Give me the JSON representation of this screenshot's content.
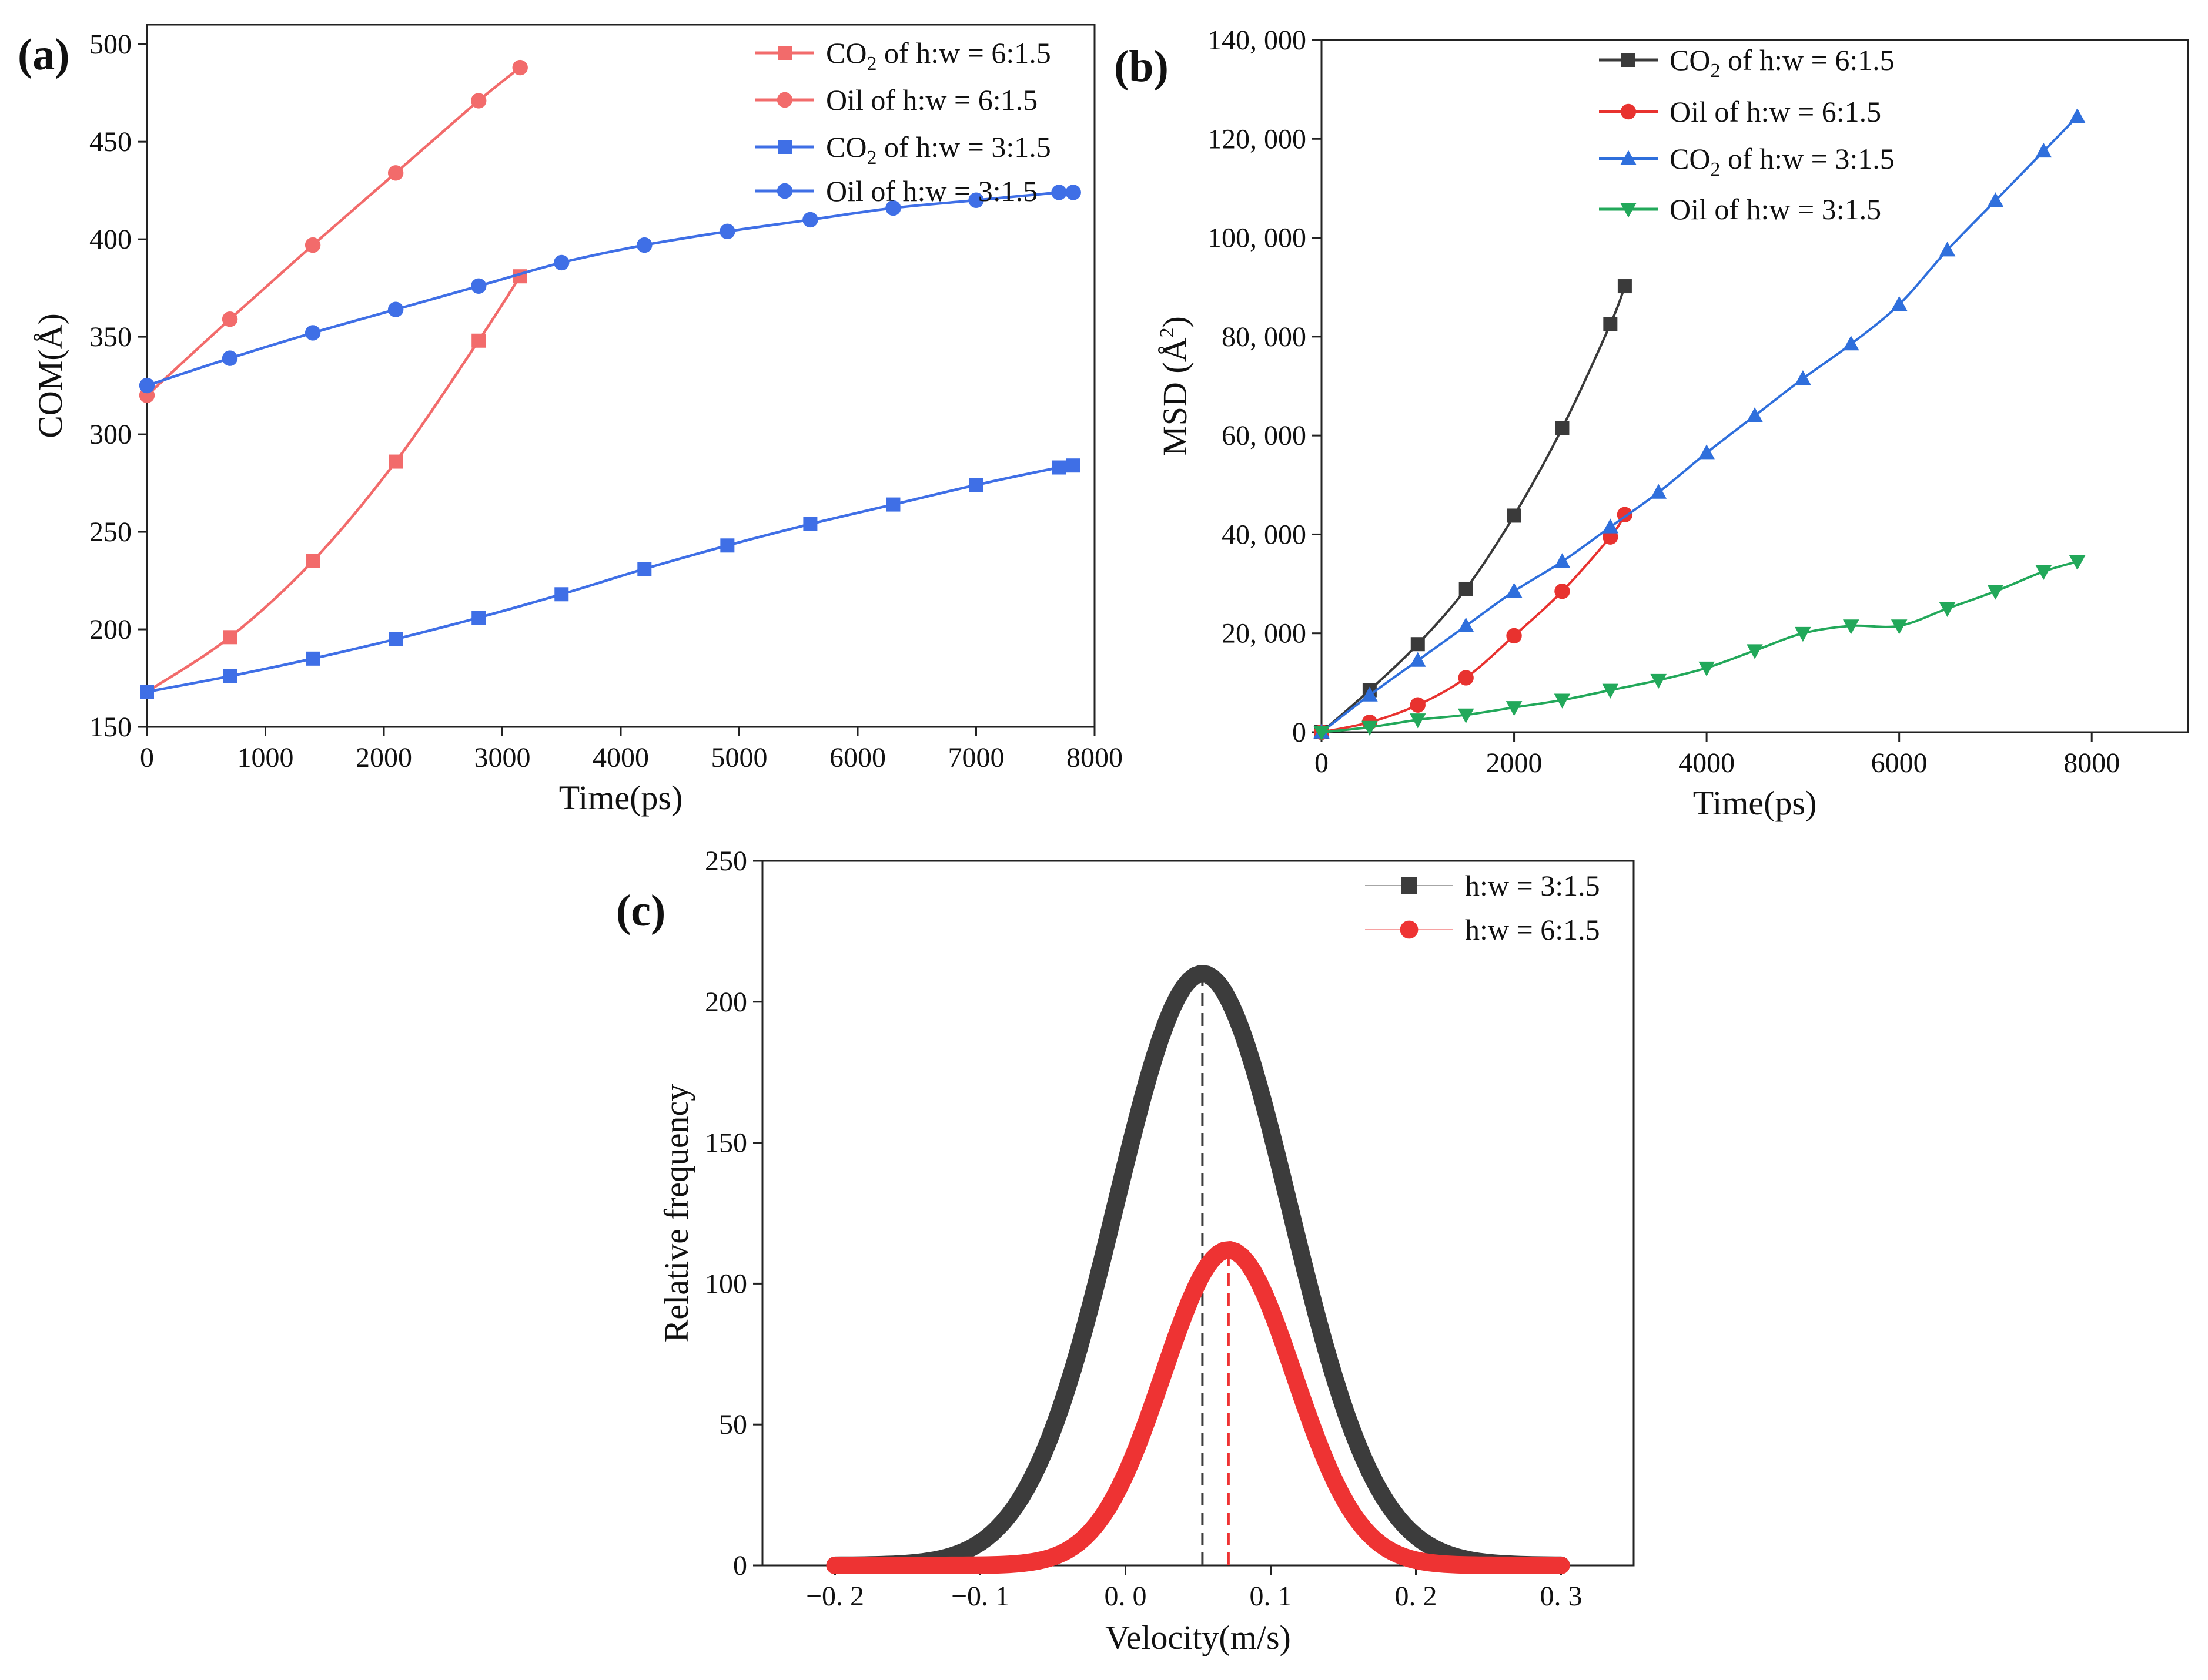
{
  "figure": {
    "panels": [
      "(a)",
      "(b)",
      "(c)"
    ]
  },
  "chart_data": [
    {
      "id": "a",
      "type": "line",
      "panel_label": "(a)",
      "xlabel": "Time(ps)",
      "ylabel": "COM(Å)",
      "xlim": [
        0,
        8000
      ],
      "ylim": [
        150,
        510
      ],
      "xticks": [
        0,
        1000,
        2000,
        3000,
        4000,
        5000,
        6000,
        7000,
        8000
      ],
      "yticks": [
        150,
        200,
        250,
        300,
        350,
        400,
        450,
        500
      ],
      "xtick_labels": [
        "0",
        "1000",
        "2000",
        "3000",
        "4000",
        "5000",
        "6000",
        "7000",
        "8000"
      ],
      "ytick_labels": [
        "150",
        "200",
        "250",
        "300",
        "350",
        "400",
        "450",
        "500"
      ],
      "legend_position": "top-right",
      "series": [
        {
          "name": "CO₂ of h:w = 6:1.5",
          "legend_main": "CO",
          "legend_sub": "2",
          "legend_tail": " of h:w = 6:1.5",
          "color": "#f26b6b",
          "marker": "square",
          "x": [
            0,
            700,
            1400,
            2100,
            2800,
            3150
          ],
          "y": [
            168,
            196,
            235,
            286,
            348,
            381
          ]
        },
        {
          "name": "Oil of h:w = 6:1.5",
          "legend_main": "Oil of h:w = 6:1.5",
          "legend_sub": "",
          "legend_tail": "",
          "color": "#f26b6b",
          "marker": "circle",
          "x": [
            0,
            700,
            1400,
            2100,
            2800,
            3150
          ],
          "y": [
            320,
            359,
            397,
            434,
            471,
            488
          ]
        },
        {
          "name": "CO₂ of h:w = 3:1.5",
          "legend_main": "CO",
          "legend_sub": "2",
          "legend_tail": " of h:w = 3:1.5",
          "color": "#3f6fe6",
          "marker": "square",
          "x": [
            0,
            700,
            1400,
            2100,
            2800,
            3500,
            4200,
            4900,
            5600,
            6300,
            7000,
            7700,
            7820
          ],
          "y": [
            168,
            176,
            185,
            195,
            206,
            218,
            231,
            243,
            254,
            264,
            274,
            283,
            284
          ]
        },
        {
          "name": "Oil of h:w = 3:1.5",
          "legend_main": "Oil of h:w = 3:1.5",
          "legend_sub": "",
          "legend_tail": "",
          "color": "#3f6fe6",
          "marker": "circle",
          "x": [
            0,
            700,
            1400,
            2100,
            2800,
            3500,
            4200,
            4900,
            5600,
            6300,
            7000,
            7700,
            7820
          ],
          "y": [
            325,
            339,
            352,
            364,
            376,
            388,
            397,
            404,
            410,
            416,
            420,
            424,
            424
          ]
        }
      ]
    },
    {
      "id": "b",
      "type": "line",
      "panel_label": "(b)",
      "xlabel": "Time(ps)",
      "ylabel": "MSD (Å²)",
      "ylabel_main": "MSD (",
      "ylabel_unit": "Å",
      "ylabel_sup": "2",
      "ylabel_close": ")",
      "xlim": [
        0,
        9000
      ],
      "ylim": [
        0,
        140000
      ],
      "xticks": [
        0,
        2000,
        4000,
        6000,
        8000
      ],
      "yticks": [
        0,
        20000,
        40000,
        60000,
        80000,
        100000,
        120000,
        140000
      ],
      "xtick_labels": [
        "0",
        "2000",
        "4000",
        "6000",
        "8000"
      ],
      "ytick_labels": [
        "0",
        "20, 000",
        "40, 000",
        "60, 000",
        "80, 000",
        "100, 000",
        "120, 000",
        "140, 000"
      ],
      "legend_position": "top-center",
      "series": [
        {
          "name": "CO₂ of h:w = 6:1.5",
          "legend_main": "CO",
          "legend_sub": "2",
          "legend_tail": " of h:w = 6:1.5",
          "color": "#3a3a3a",
          "marker": "square",
          "x": [
            0,
            500,
            1000,
            1500,
            2000,
            2500,
            3000,
            3150
          ],
          "y": [
            0,
            8500,
            17800,
            29000,
            43800,
            61500,
            82500,
            90200
          ]
        },
        {
          "name": "Oil of h:w = 6:1.5",
          "legend_main": "Oil of h:w = 6:1.5",
          "legend_sub": "",
          "legend_tail": "",
          "color": "#e8322f",
          "marker": "circle",
          "x": [
            0,
            500,
            1000,
            1500,
            2000,
            2500,
            3000,
            3150
          ],
          "y": [
            0,
            2000,
            5500,
            11000,
            19500,
            28500,
            39500,
            44000
          ]
        },
        {
          "name": "CO₂ of h:w = 3:1.5",
          "legend_main": "CO",
          "legend_sub": "2",
          "legend_tail": " of h:w = 3:1.5",
          "color": "#2f6fdc",
          "marker": "triangle-up",
          "x": [
            0,
            500,
            1000,
            1500,
            2000,
            2500,
            3000,
            3500,
            4000,
            4500,
            5000,
            5500,
            6000,
            6500,
            7000,
            7500,
            7850
          ],
          "y": [
            0,
            7500,
            14500,
            21500,
            28500,
            34500,
            41500,
            48500,
            56500,
            64000,
            71500,
            78500,
            86500,
            97500,
            107500,
            117500,
            124500
          ]
        },
        {
          "name": "Oil of h:w = 3:1.5",
          "legend_main": "Oil of h:w = 3:1.5",
          "legend_sub": "",
          "legend_tail": "",
          "color": "#22a85a",
          "marker": "triangle-down",
          "x": [
            0,
            500,
            1000,
            1500,
            2000,
            2500,
            3000,
            3500,
            4000,
            4500,
            5000,
            5500,
            6000,
            6500,
            7000,
            7500,
            7850
          ],
          "y": [
            0,
            1000,
            2500,
            3500,
            5000,
            6500,
            8500,
            10500,
            13000,
            16500,
            20000,
            21500,
            21500,
            25000,
            28500,
            32500,
            34500
          ]
        }
      ]
    },
    {
      "id": "c",
      "type": "line",
      "panel_label": "(c)",
      "xlabel": "Velocity(m/s)",
      "ylabel": "Relative frequency",
      "xlim": [
        -0.25,
        0.35
      ],
      "ylim": [
        0,
        250
      ],
      "xticks": [
        -0.2,
        -0.1,
        0.0,
        0.1,
        0.2,
        0.3
      ],
      "yticks": [
        0,
        50,
        100,
        150,
        200,
        250
      ],
      "xtick_labels": [
        "−0. 2",
        "−0. 1",
        "0. 0",
        "0. 1",
        "0. 2",
        "0. 3"
      ],
      "ytick_labels": [
        "0",
        "50",
        "100",
        "150",
        "200",
        "250"
      ],
      "legend_position": "top-right",
      "series": [
        {
          "name": "h:w = 3:1.5",
          "color": "#3c3c3c",
          "marker": "square",
          "peak_velocity": 0.053,
          "peak_frequency": 210,
          "sigma": 0.06,
          "x_range": [
            -0.2,
            0.3
          ],
          "mean_line": 0.053
        },
        {
          "name": "h:w = 6:1.5",
          "color": "#ee3333",
          "marker": "circle",
          "peak_velocity": 0.071,
          "peak_frequency": 112,
          "sigma": 0.045,
          "x_range": [
            -0.2,
            0.3
          ],
          "mean_line": 0.071
        }
      ]
    }
  ]
}
